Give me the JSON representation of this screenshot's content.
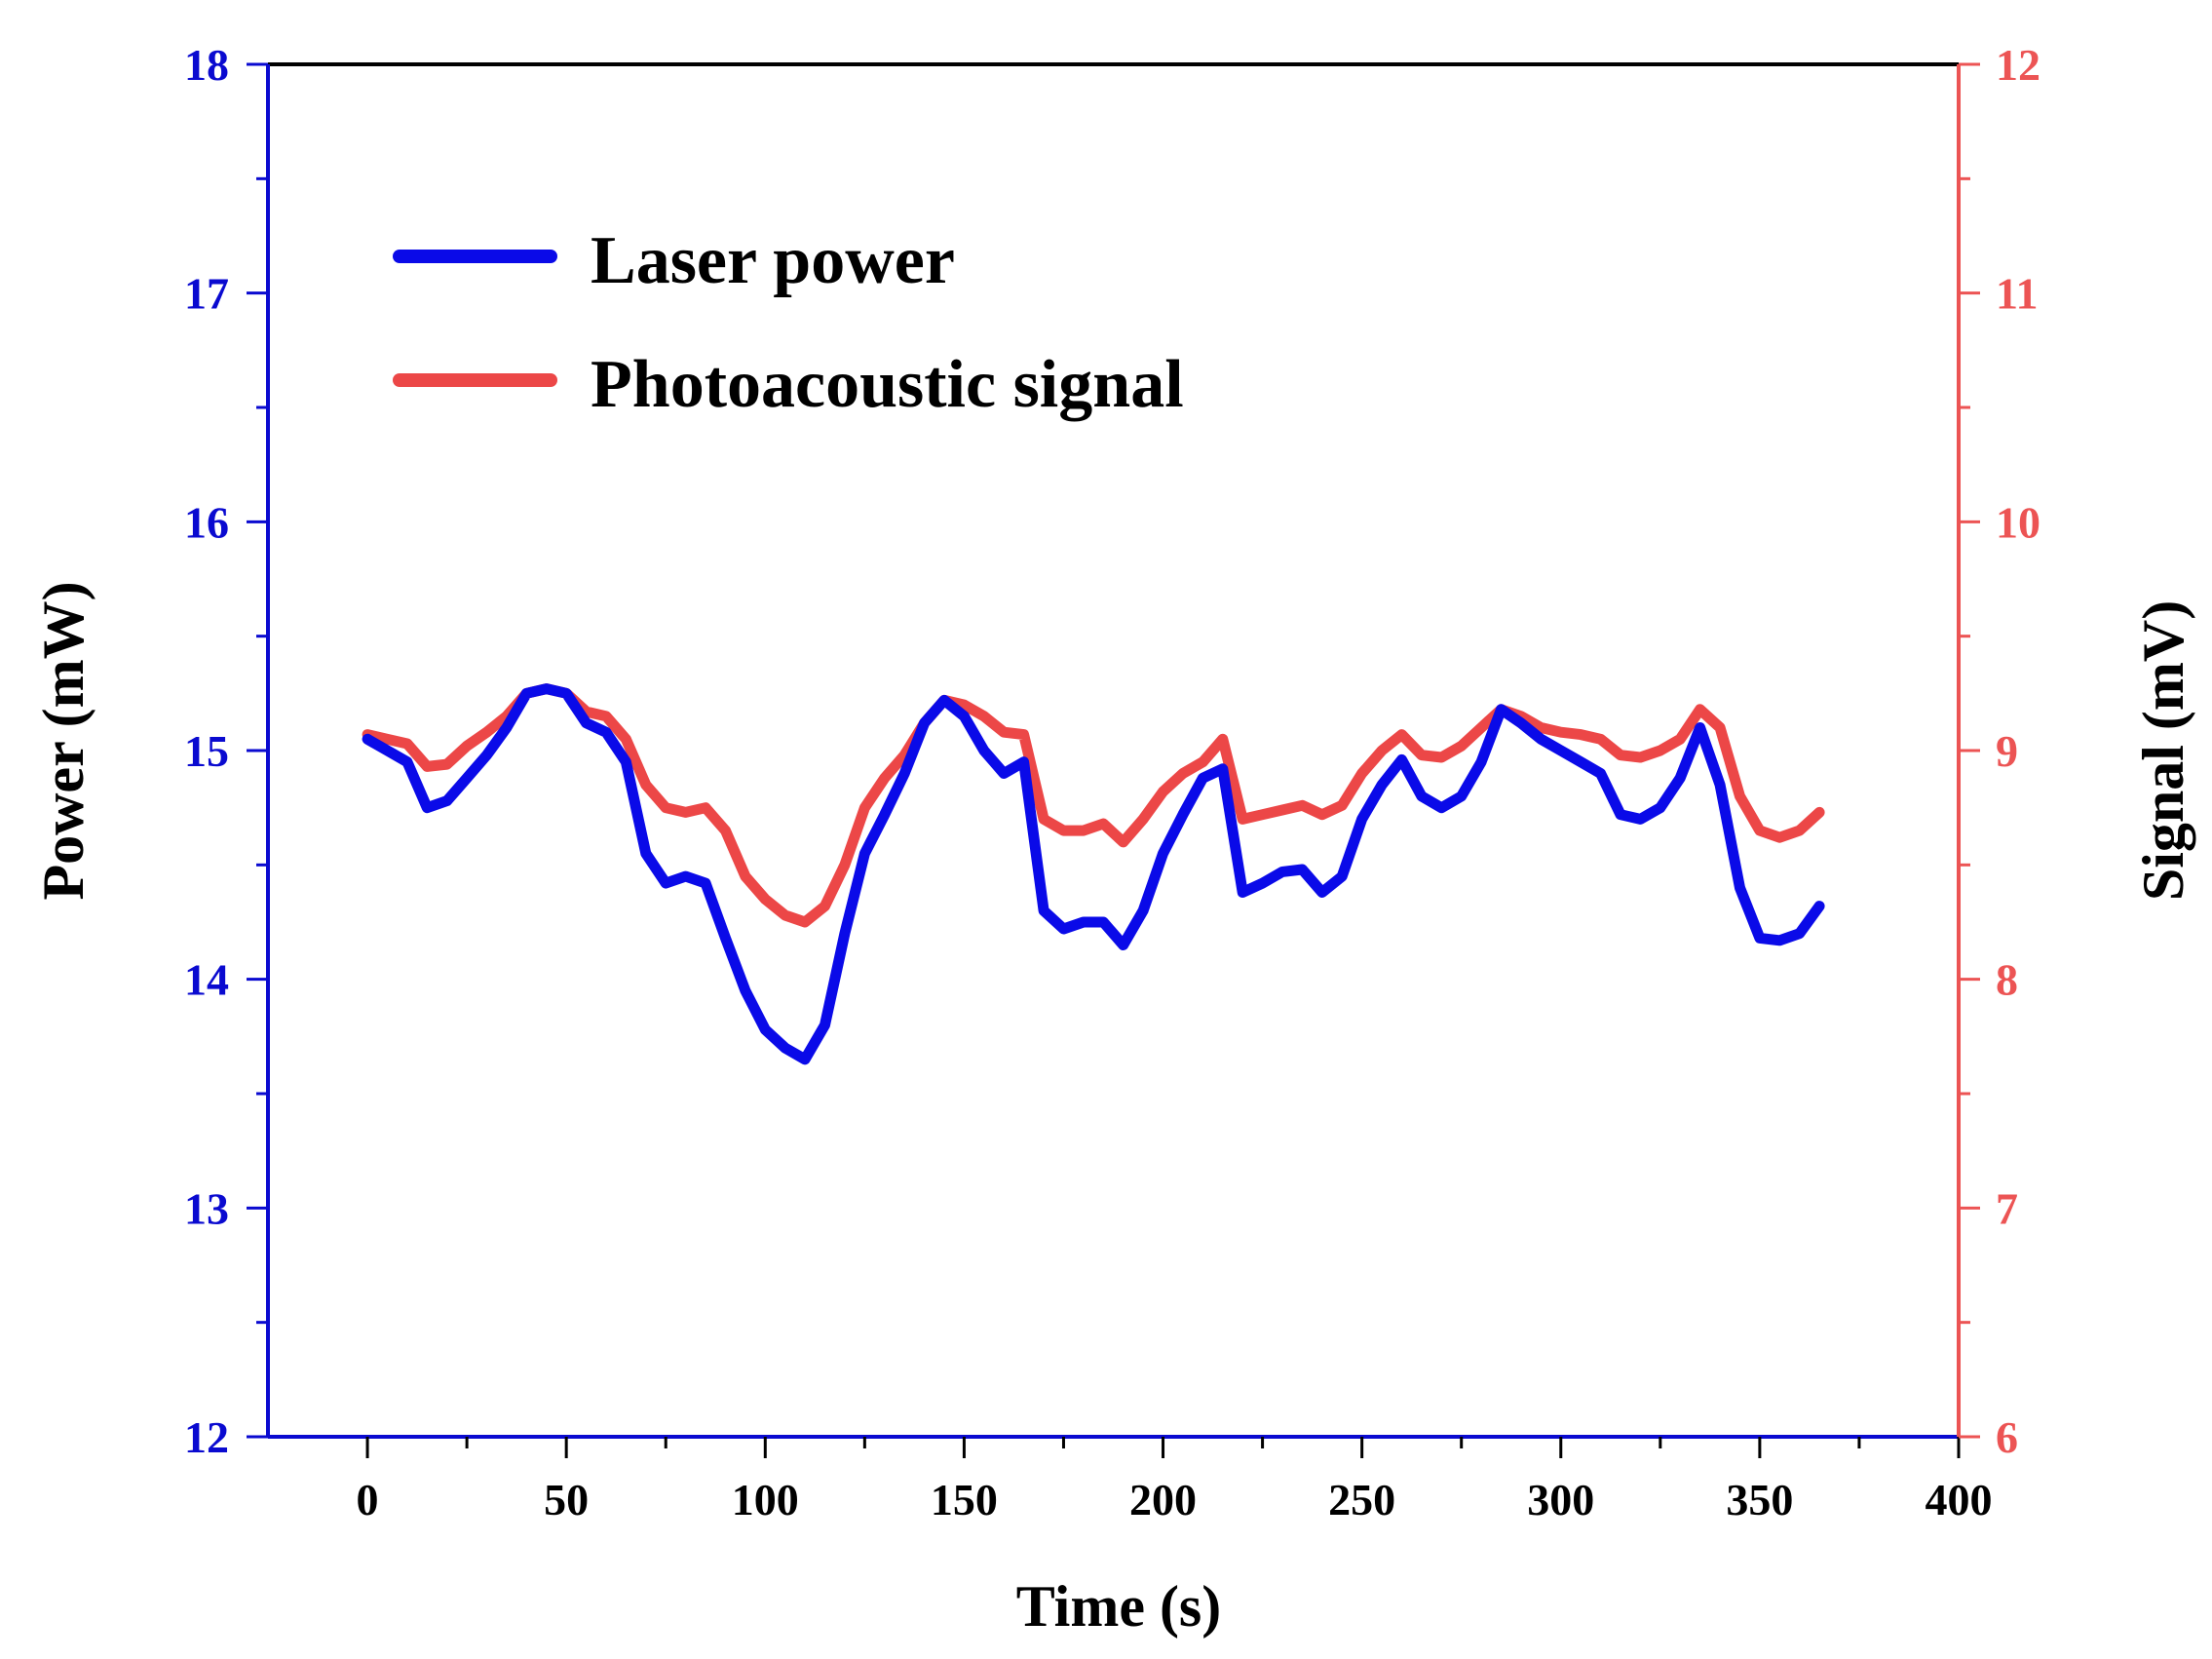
{
  "chart_data": {
    "type": "line",
    "xlabel": "Time (s)",
    "ylabel_left": "Power (mW)",
    "ylabel_right": "Signal (mV)",
    "xlim": [
      -25,
      400
    ],
    "xticks": [
      0,
      50,
      100,
      150,
      200,
      250,
      300,
      350,
      400
    ],
    "ylim_left": [
      12,
      18
    ],
    "yticks_left": [
      12,
      13,
      14,
      15,
      16,
      17,
      18
    ],
    "ylim_right": [
      6,
      12
    ],
    "yticks_right": [
      6,
      7,
      8,
      9,
      10,
      11,
      12
    ],
    "colors": {
      "left_axis": "#0a0ad0",
      "right_axis": "#ec5454",
      "frame": "#000000",
      "laser_power": "#0a0ae8",
      "photoacoustic_signal": "#ec4747"
    },
    "legend_position": "top-left",
    "series": [
      {
        "name": "Laser power",
        "axis": "left",
        "x": [
          0,
          5,
          10,
          15,
          20,
          25,
          30,
          35,
          40,
          45,
          50,
          55,
          60,
          65,
          70,
          75,
          80,
          85,
          90,
          95,
          100,
          105,
          110,
          115,
          120,
          125,
          130,
          135,
          140,
          145,
          150,
          155,
          160,
          165,
          170,
          175,
          180,
          185,
          190,
          195,
          200,
          205,
          210,
          215,
          220,
          225,
          230,
          235,
          240,
          245,
          250,
          255,
          260,
          265,
          270,
          275,
          280,
          285,
          290,
          295,
          300,
          305,
          310,
          315,
          320,
          325,
          330,
          335,
          340,
          345,
          350,
          355,
          360,
          365
        ],
        "values": [
          15.05,
          15.0,
          14.95,
          14.75,
          14.78,
          14.88,
          14.98,
          15.1,
          15.25,
          15.27,
          15.25,
          15.12,
          15.08,
          14.95,
          14.55,
          14.42,
          14.45,
          14.42,
          14.18,
          13.95,
          13.78,
          13.7,
          13.65,
          13.8,
          14.2,
          14.55,
          14.72,
          14.9,
          15.12,
          15.22,
          15.15,
          15.0,
          14.9,
          14.95,
          14.3,
          14.22,
          14.25,
          14.25,
          14.15,
          14.3,
          14.55,
          14.72,
          14.88,
          14.92,
          14.38,
          14.42,
          14.47,
          14.48,
          14.38,
          14.45,
          14.7,
          14.85,
          14.96,
          14.8,
          14.75,
          14.8,
          14.95,
          15.18,
          15.12,
          15.05,
          15.0,
          14.95,
          14.9,
          14.72,
          14.7,
          14.75,
          14.88,
          15.1,
          14.85,
          14.4,
          14.18,
          14.17,
          14.2,
          14.32
        ]
      },
      {
        "name": "Photoacoustic signal",
        "axis": "right",
        "x": [
          0,
          5,
          10,
          15,
          20,
          25,
          30,
          35,
          40,
          45,
          50,
          55,
          60,
          65,
          70,
          75,
          80,
          85,
          90,
          95,
          100,
          105,
          110,
          115,
          120,
          125,
          130,
          135,
          140,
          145,
          150,
          155,
          160,
          165,
          170,
          175,
          180,
          185,
          190,
          195,
          200,
          205,
          210,
          215,
          220,
          225,
          230,
          235,
          240,
          245,
          250,
          255,
          260,
          265,
          270,
          275,
          280,
          285,
          290,
          295,
          300,
          305,
          310,
          315,
          320,
          325,
          330,
          335,
          340,
          345,
          350,
          355,
          360,
          365
        ],
        "values": [
          9.07,
          9.05,
          9.03,
          8.93,
          8.94,
          9.02,
          9.08,
          9.15,
          9.25,
          9.27,
          9.25,
          9.17,
          9.15,
          9.05,
          8.85,
          8.75,
          8.73,
          8.75,
          8.65,
          8.45,
          8.35,
          8.28,
          8.25,
          8.32,
          8.5,
          8.75,
          8.88,
          8.98,
          9.12,
          9.22,
          9.2,
          9.15,
          9.08,
          9.07,
          8.7,
          8.65,
          8.65,
          8.68,
          8.6,
          8.7,
          8.82,
          8.9,
          8.95,
          9.05,
          8.7,
          8.72,
          8.74,
          8.76,
          8.72,
          8.76,
          8.9,
          9.0,
          9.07,
          8.98,
          8.97,
          9.02,
          9.1,
          9.18,
          9.15,
          9.1,
          9.08,
          9.07,
          9.05,
          8.98,
          8.97,
          9.0,
          9.05,
          9.18,
          9.1,
          8.8,
          8.65,
          8.62,
          8.65,
          8.73
        ]
      }
    ]
  }
}
